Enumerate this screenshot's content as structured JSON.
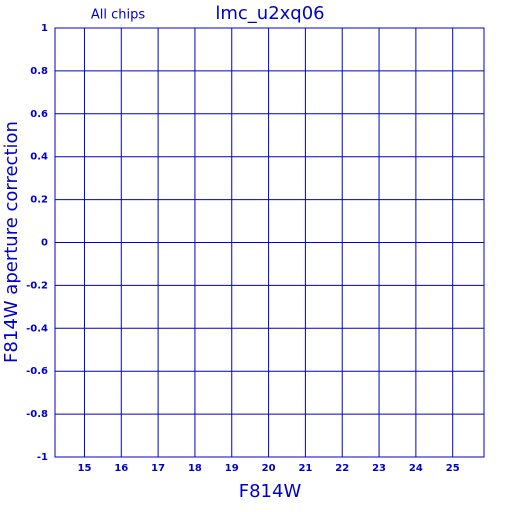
{
  "chart_data": {
    "type": "scatter",
    "title": "lmc_u2xq06",
    "annotation": "All chips",
    "x_label": "F814W",
    "y_label": "F814W aperture correction",
    "xlim": [
      14.2,
      25.85
    ],
    "xticks": [
      15,
      16,
      17,
      18,
      19,
      20,
      21,
      22,
      23,
      24,
      25
    ],
    "ylim": [
      -1,
      1
    ],
    "yticks": [
      -1,
      -0.8,
      -0.6,
      -0.4,
      -0.2,
      0,
      0.2,
      0.4,
      0.6,
      0.8,
      1
    ],
    "grid": true,
    "color": "#0000cc"
  }
}
